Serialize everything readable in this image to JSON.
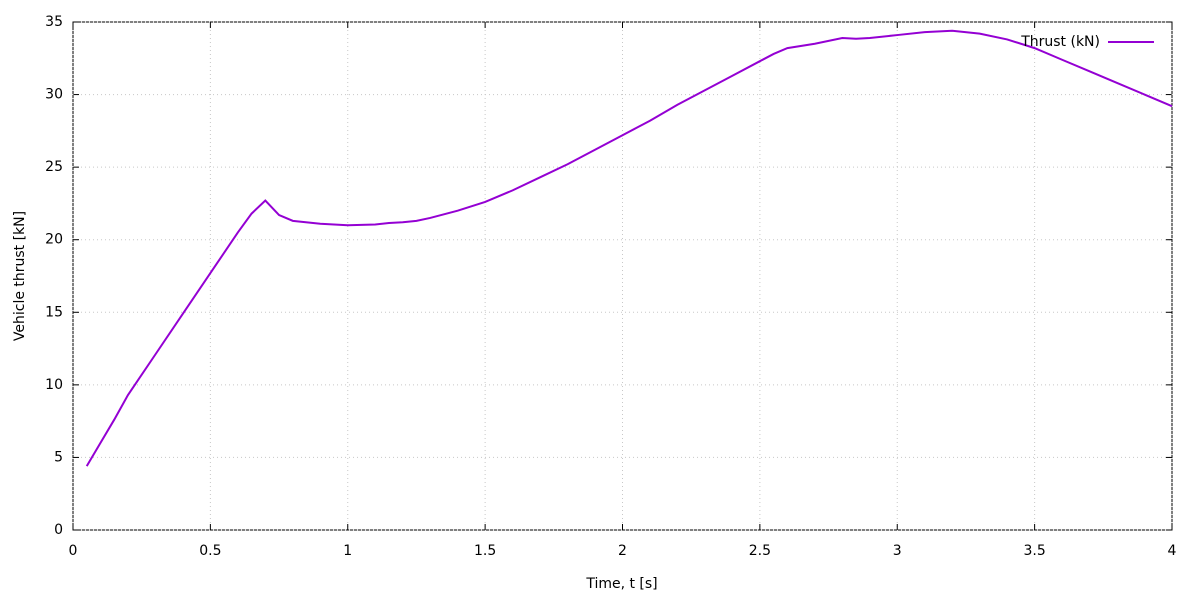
{
  "chart_data": {
    "type": "line",
    "xlabel": "Time, t [s]",
    "ylabel": "Vehicle thrust [kN]",
    "x": [
      0.05,
      0.1,
      0.15,
      0.2,
      0.3,
      0.4,
      0.5,
      0.6,
      0.65,
      0.7,
      0.75,
      0.8,
      0.9,
      1.0,
      1.1,
      1.15,
      1.2,
      1.25,
      1.3,
      1.4,
      1.5,
      1.6,
      1.7,
      1.8,
      1.9,
      2.0,
      2.1,
      2.2,
      2.3,
      2.4,
      2.5,
      2.55,
      2.6,
      2.7,
      2.8,
      2.85,
      2.9,
      3.0,
      3.1,
      3.2,
      3.3,
      3.4,
      3.5,
      3.6,
      3.7,
      3.8,
      3.9,
      4.0
    ],
    "series": [
      {
        "name": "Thrust (kN)",
        "color": "#9400d3",
        "values": [
          4.4,
          6.0,
          7.6,
          9.3,
          12.1,
          14.9,
          17.7,
          20.5,
          21.8,
          22.7,
          21.7,
          21.3,
          21.1,
          21.0,
          21.05,
          21.15,
          21.2,
          21.3,
          21.5,
          22.0,
          22.6,
          23.4,
          24.3,
          25.2,
          26.2,
          27.2,
          28.2,
          29.3,
          30.3,
          31.3,
          32.3,
          32.8,
          33.2,
          33.5,
          33.9,
          33.85,
          33.9,
          34.1,
          34.3,
          34.4,
          34.2,
          33.8,
          33.2,
          32.4,
          31.6,
          30.8,
          30.0,
          29.2
        ]
      }
    ],
    "xlim": [
      0,
      4
    ],
    "xticks": [
      0,
      0.5,
      1,
      1.5,
      2,
      2.5,
      3,
      3.5,
      4
    ],
    "ylim": [
      0,
      35
    ],
    "yticks": [
      0,
      5,
      10,
      15,
      20,
      25,
      30,
      35
    ],
    "grid": true,
    "legend": "top-right"
  }
}
